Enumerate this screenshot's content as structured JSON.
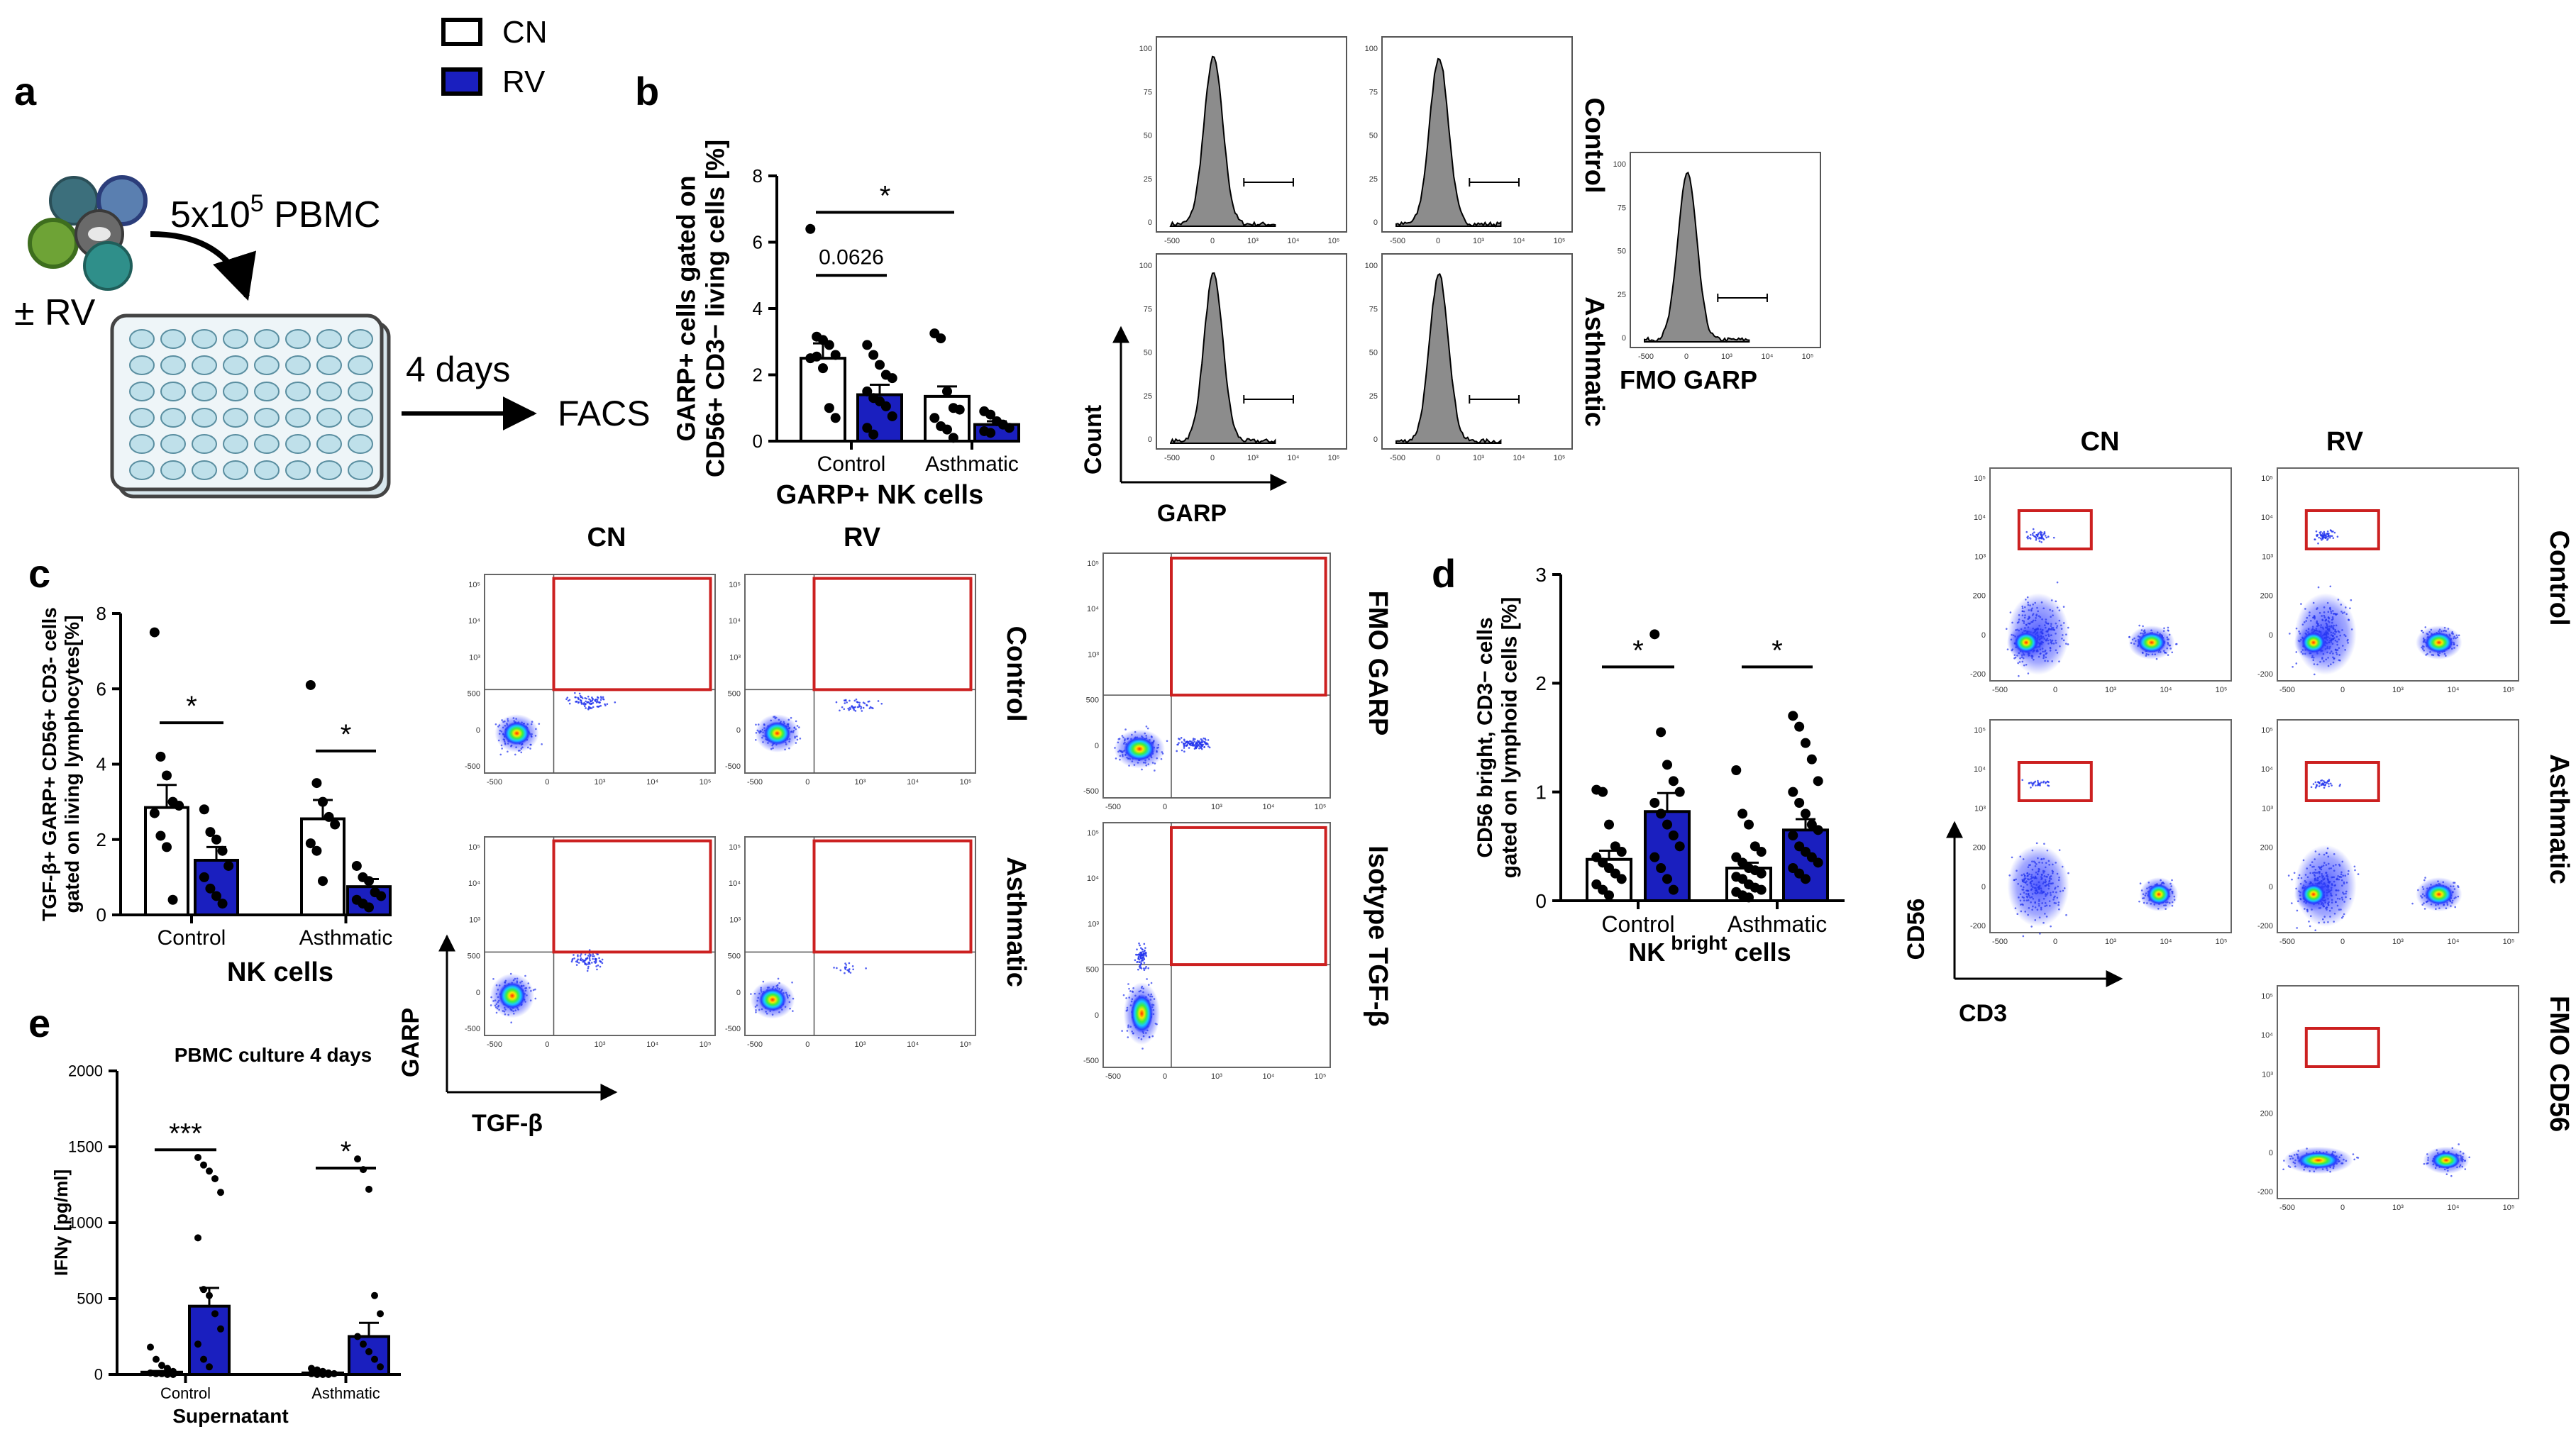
{
  "legend": {
    "items": [
      {
        "label": "CN",
        "color": "#ffffff"
      },
      {
        "label": "RV",
        "color": "#1a1fbf"
      }
    ]
  },
  "colors": {
    "rv_blue": "#1a1fbf",
    "gate_red": "#cc2020",
    "hist_gray": "#8c8c8c"
  },
  "panel_a": {
    "letter": "a",
    "cells_label_main": "5x10",
    "cells_label_sup": "5",
    "cells_label_tail": " PBMC",
    "rv_label": "± RV",
    "days_label": "4 days",
    "facs_label": "FACS"
  },
  "panel_b": {
    "letter": "b",
    "pval": "0.0626",
    "star": "*",
    "subtitle": "GARP+ NK cells",
    "hist_x_label": "GARP",
    "hist_y_label": "Count",
    "row_labels": [
      "Control",
      "Asthmatic"
    ],
    "fmo_label": "FMO GARP"
  },
  "panel_c": {
    "letter": "c",
    "stars": [
      "*",
      "*"
    ],
    "subtitle": "NK cells",
    "col_labels": [
      "CN",
      "RV"
    ],
    "row_labels": [
      "Control",
      "Asthmatic"
    ],
    "side_labels": [
      "FMO GARP",
      "Isotype TGF-β"
    ],
    "dot_x_label": "TGF-β",
    "dot_y_label": "GARP"
  },
  "panel_d": {
    "letter": "d",
    "stars": [
      "*",
      "*"
    ],
    "subtitle_main": "NK",
    "subtitle_sup": "bright",
    "subtitle_tail": " cells",
    "col_labels": [
      "CN",
      "RV"
    ],
    "row_labels": [
      "Control",
      "Asthmatic",
      "FMO CD56"
    ],
    "dot_x_label": "CD3",
    "dot_y_label": "CD56"
  },
  "panel_e": {
    "letter": "e",
    "title": "PBMC culture 4 days",
    "stars": [
      "***",
      "*"
    ],
    "subtitle": "Supernatant"
  },
  "chart_data": [
    {
      "id": "b",
      "type": "bar",
      "title": "",
      "xlabel": "GARP+ NK cells",
      "ylabel": "GARP+ cells gated on CD56+ CD3− living cells [%]",
      "categories": [
        "Control",
        "Asthmatic"
      ],
      "ylim": [
        0,
        8
      ],
      "yticks": [
        0,
        2,
        4,
        6,
        8
      ],
      "series": [
        {
          "name": "CN",
          "values": [
            2.5,
            1.35
          ],
          "errors": [
            0.45,
            0.3
          ],
          "points": [
            [
              6.4,
              3.15,
              3.05,
              2.9,
              2.6,
              2.5,
              2.55,
              2.2,
              1.0,
              0.7
            ],
            [
              3.25,
              3.1,
              1.5,
              1.0,
              0.95,
              0.7,
              0.45,
              0.35,
              0.1
            ]
          ]
        },
        {
          "name": "RV",
          "values": [
            1.4,
            0.5
          ],
          "errors": [
            0.3,
            0.1
          ],
          "points": [
            [
              2.9,
              2.6,
              2.3,
              2.0,
              1.9,
              1.5,
              1.3,
              1.2,
              1.05,
              0.75,
              0.4,
              0.2
            ],
            [
              0.9,
              0.8,
              0.6,
              0.5,
              0.4,
              0.3,
              0.25
            ]
          ]
        }
      ],
      "brackets": [
        {
          "label": "0.0626",
          "from": [
            0,
            0
          ],
          "to": [
            0,
            1
          ],
          "y": 5.0
        },
        {
          "label": "*",
          "from": [
            0,
            0
          ],
          "to": [
            1,
            0
          ],
          "y": 6.9
        }
      ]
    },
    {
      "id": "c",
      "type": "bar",
      "title": "",
      "xlabel": "NK cells",
      "ylabel": "TGF-β+ GARP+ CD56+ CD3- cells gated on living lymphocytes[%]",
      "categories": [
        "Control",
        "Asthmatic"
      ],
      "ylim": [
        0,
        8
      ],
      "yticks": [
        0,
        2,
        4,
        6,
        8
      ],
      "series": [
        {
          "name": "CN",
          "values": [
            2.85,
            2.55
          ],
          "errors": [
            0.6,
            0.5
          ],
          "points": [
            [
              7.5,
              4.2,
              3.7,
              3.0,
              2.9,
              2.7,
              2.1,
              1.8,
              0.4
            ],
            [
              6.1,
              3.5,
              3.0,
              2.6,
              2.4,
              1.9,
              1.7,
              0.9
            ]
          ]
        },
        {
          "name": "RV",
          "values": [
            1.45,
            0.75
          ],
          "errors": [
            0.35,
            0.2
          ],
          "points": [
            [
              2.8,
              2.2,
              2.0,
              1.7,
              1.3,
              1.0,
              0.7,
              0.5,
              0.3
            ],
            [
              1.3,
              1.0,
              0.9,
              0.6,
              0.5,
              0.4,
              0.3,
              0.2
            ]
          ]
        }
      ],
      "brackets": [
        {
          "label": "*",
          "from": [
            0,
            0
          ],
          "to": [
            0,
            1
          ],
          "y": 5.1
        },
        {
          "label": "*",
          "from": [
            1,
            0
          ],
          "to": [
            1,
            1
          ],
          "y": 4.35
        }
      ]
    },
    {
      "id": "d",
      "type": "bar",
      "title": "",
      "xlabel": "NK bright cells",
      "ylabel": "CD56 bright, CD3− cells gated on lymphoid cells [%]",
      "categories": [
        "Control",
        "Asthmatic"
      ],
      "ylim": [
        0,
        3
      ],
      "yticks": [
        0,
        1,
        2,
        3
      ],
      "series": [
        {
          "name": "CN",
          "values": [
            0.38,
            0.3
          ],
          "errors": [
            0.08,
            0.05
          ],
          "points": [
            [
              1.02,
              1.0,
              0.7,
              0.5,
              0.45,
              0.4,
              0.35,
              0.3,
              0.25,
              0.2,
              0.15,
              0.1,
              0.05
            ],
            [
              1.2,
              0.8,
              0.7,
              0.5,
              0.45,
              0.4,
              0.35,
              0.3,
              0.28,
              0.25,
              0.22,
              0.2,
              0.15,
              0.12,
              0.1,
              0.08,
              0.05,
              0.03
            ]
          ]
        },
        {
          "name": "RV",
          "values": [
            0.82,
            0.65
          ],
          "errors": [
            0.17,
            0.1
          ],
          "points": [
            [
              2.45,
              1.55,
              1.25,
              1.1,
              1.0,
              0.9,
              0.8,
              0.7,
              0.6,
              0.5,
              0.4,
              0.3,
              0.2,
              0.1
            ],
            [
              1.7,
              1.6,
              1.45,
              1.3,
              1.1,
              1.0,
              0.9,
              0.8,
              0.7,
              0.65,
              0.6,
              0.5,
              0.45,
              0.4,
              0.35,
              0.3,
              0.25,
              0.2
            ]
          ]
        }
      ],
      "brackets": [
        {
          "label": "*",
          "from": [
            0,
            0
          ],
          "to": [
            0,
            1
          ],
          "y": 2.15
        },
        {
          "label": "*",
          "from": [
            1,
            0
          ],
          "to": [
            1,
            1
          ],
          "y": 2.15
        }
      ]
    },
    {
      "id": "e",
      "type": "bar",
      "title": "PBMC culture 4 days",
      "xlabel": "Supernatant",
      "ylabel": "IFNγ [pg/ml]",
      "categories": [
        "Control",
        "Asthmatic"
      ],
      "ylim": [
        0,
        2000
      ],
      "yticks": [
        0,
        500,
        1000,
        1500,
        2000
      ],
      "series": [
        {
          "name": "CN",
          "values": [
            15,
            10
          ],
          "errors": [
            8,
            5
          ],
          "points": [
            [
              180,
              100,
              60,
              40,
              20,
              10,
              5,
              5,
              0,
              0
            ],
            [
              40,
              30,
              20,
              10,
              5,
              5,
              0,
              0,
              0
            ]
          ]
        },
        {
          "name": "RV",
          "values": [
            450,
            250
          ],
          "errors": [
            120,
            90
          ],
          "points": [
            [
              1430,
              1380,
              1340,
              1290,
              1200,
              900,
              560,
              520,
              400,
              300,
              200,
              100,
              50
            ],
            [
              1420,
              1350,
              1220,
              520,
              400,
              250,
              200,
              150,
              100,
              50
            ]
          ]
        }
      ],
      "brackets": [
        {
          "label": "***",
          "from": [
            0,
            0
          ],
          "to": [
            0,
            1
          ],
          "y": 1480
        },
        {
          "label": "*",
          "from": [
            1,
            0
          ],
          "to": [
            1,
            1
          ],
          "y": 1360
        }
      ]
    }
  ]
}
